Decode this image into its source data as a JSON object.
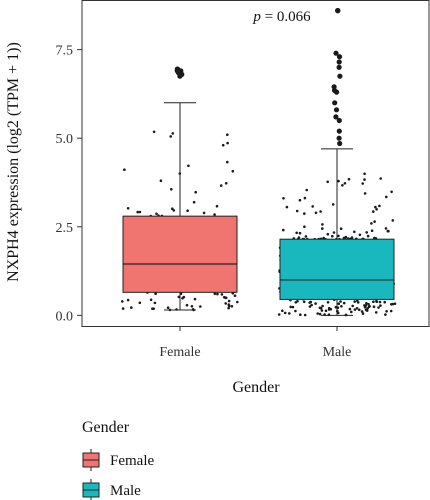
{
  "chart_data": {
    "type": "box",
    "title": "",
    "xlabel": "Gender",
    "ylabel": "NXPH4 expression (log2 (TPM + 1))",
    "annotation": {
      "prefix": "p",
      "rest": " = 0.066"
    },
    "ylim": [
      -0.3,
      8.9
    ],
    "yticks": [
      0.0,
      2.5,
      5.0,
      7.5
    ],
    "ytick_labels": [
      "0.0",
      "2.5",
      "5.0",
      "7.5"
    ],
    "categories": [
      "Female",
      "Male"
    ],
    "grid": false,
    "legend": {
      "title": "Gender",
      "position": "bottom-left",
      "entries": [
        "Female",
        "Male"
      ]
    },
    "series": [
      {
        "name": "Female",
        "color": "#f07470",
        "q1": 0.65,
        "median": 1.45,
        "q3": 2.8,
        "whisker_low": 0.15,
        "whisker_high": 6.0,
        "outliers": [
          6.75,
          6.85,
          6.9,
          6.95,
          6.95,
          6.9,
          6.85,
          6.8
        ]
      },
      {
        "name": "Male",
        "color": "#19b8bf",
        "q1": 0.45,
        "median": 1.0,
        "q3": 2.15,
        "whisker_low": 0.0,
        "whisker_high": 4.7,
        "outliers": [
          4.85,
          5.0,
          5.2,
          5.5,
          5.6,
          5.8,
          6.0,
          6.3,
          6.35,
          6.45,
          6.75,
          7.0,
          7.15,
          7.3,
          7.4,
          8.6,
          8.6
        ]
      }
    ]
  }
}
